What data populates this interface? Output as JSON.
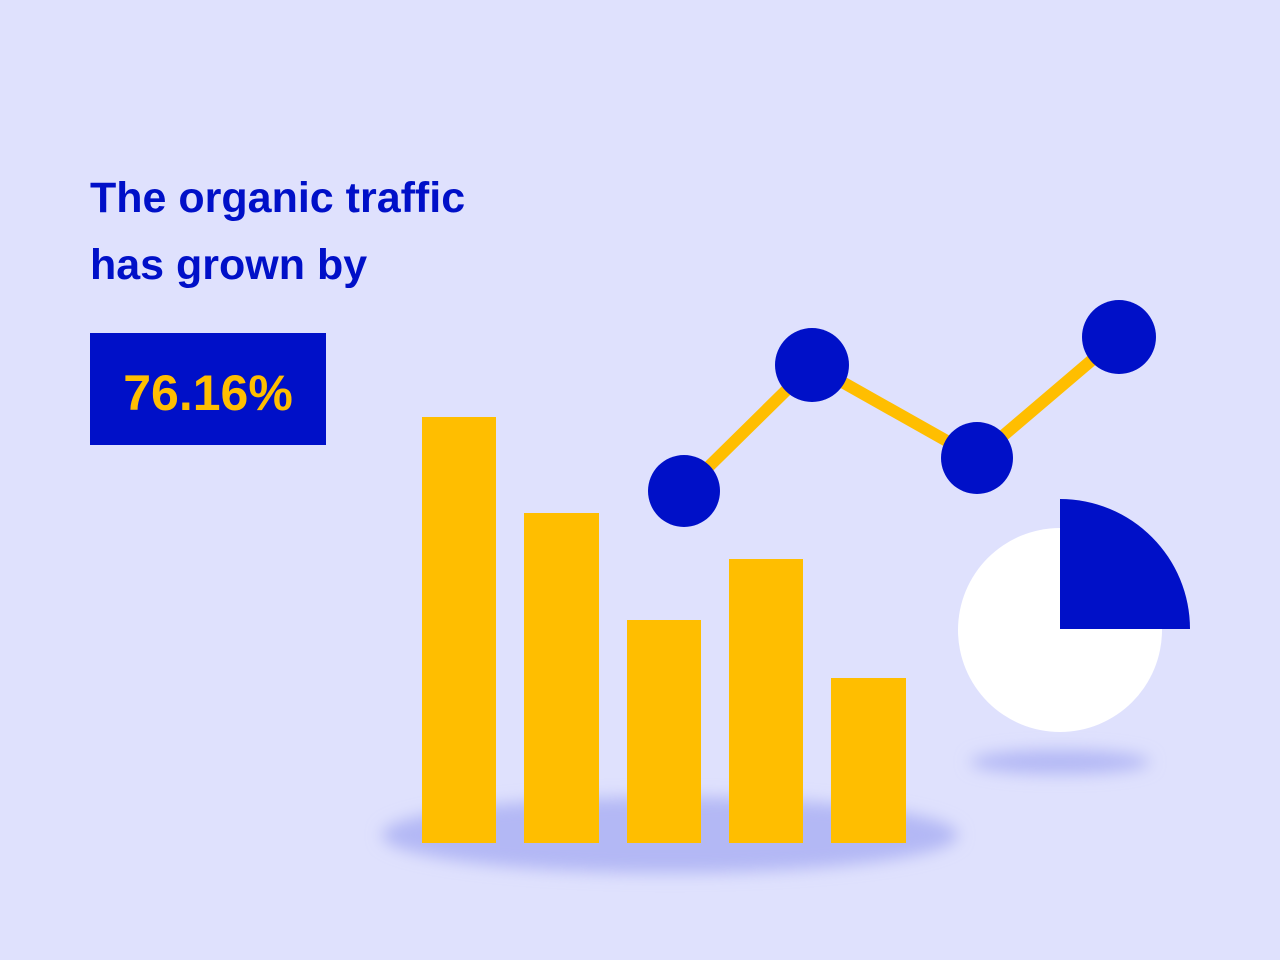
{
  "headline": {
    "lines": [
      "The organic traffic",
      "has grown by"
    ]
  },
  "stat": {
    "value": "76.16%"
  }
}
